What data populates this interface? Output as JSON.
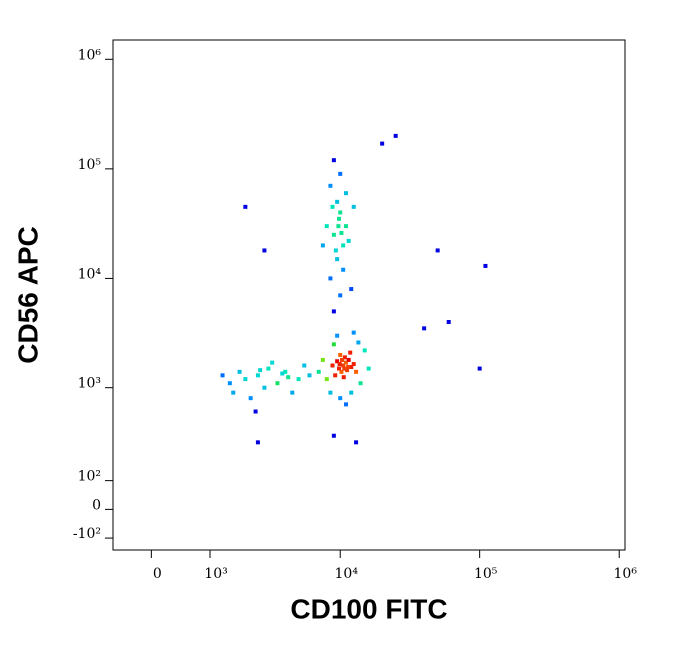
{
  "chart_data": {
    "type": "scatter",
    "x_label": "CD100 FITC",
    "y_label": "CD56 APC",
    "x_scale": "biexponential",
    "y_scale": "biexponential",
    "xlim": [
      -600,
      1100000
    ],
    "ylim": [
      -150,
      1500000
    ],
    "xticks": [
      0,
      {
        "value": 1000,
        "label": "10³"
      },
      {
        "value": 10000,
        "label": "10⁴"
      },
      {
        "value": 100000,
        "label": "10⁵"
      },
      {
        "value": 1000000,
        "label": "10⁶"
      }
    ],
    "yticks": [
      {
        "value": -100,
        "label": "-10²"
      },
      0,
      {
        "value": 100,
        "label": "10²"
      },
      {
        "value": 1000,
        "label": "10³"
      },
      {
        "value": 10000,
        "label": "10⁴"
      },
      {
        "value": 100000,
        "label": "10⁵"
      },
      {
        "value": 1000000,
        "label": "10⁶"
      }
    ],
    "color": "#0000e0",
    "x": [
      10500,
      11000,
      9800,
      11500,
      10200,
      12000,
      10800,
      9500,
      11200,
      10000,
      12500,
      9200,
      11800,
      10600,
      8800,
      13000,
      10300,
      11400,
      9900,
      10700,
      8000,
      14000,
      7500,
      15000,
      9000,
      12000,
      10000,
      13500,
      8500,
      16000,
      7000,
      11000,
      9500,
      12500,
      6000,
      5000,
      4000,
      3500,
      3000,
      2500,
      2000,
      1800,
      1500,
      1300,
      2800,
      4500,
      3200,
      2200,
      5500,
      4200,
      3800,
      2600,
      1600,
      2400,
      9000,
      10000,
      8500,
      9500,
      10500,
      9000,
      11000,
      8000,
      10000,
      9500,
      11000,
      8500,
      10000,
      9000,
      12000,
      7500,
      10500,
      9800,
      8800,
      11500,
      10200,
      9300,
      12500,
      9700,
      50000,
      110000,
      100000,
      60000,
      40000,
      2000,
      2800,
      20000,
      25000,
      9000,
      13000,
      2500
    ],
    "y": [
      1600,
      1700,
      1500,
      1800,
      1400,
      1550,
      1900,
      1750,
      1450,
      2000,
      1650,
      1300,
      2100,
      1250,
      1600,
      1400,
      1800,
      1550,
      1650,
      1500,
      1200,
      1100,
      1800,
      2200,
      2500,
      900,
      800,
      2600,
      900,
      1500,
      1400,
      700,
      3000,
      3200,
      1300,
      1200,
      1400,
      1100,
      1500,
      1300,
      1200,
      1400,
      1100,
      1300,
      1000,
      900,
      1700,
      800,
      1600,
      1250,
      1350,
      1450,
      900,
      600,
      5000,
      7000,
      10000,
      15000,
      20000,
      25000,
      30000,
      30000,
      40000,
      50000,
      60000,
      70000,
      90000,
      120000,
      8000,
      20000,
      12000,
      35000,
      45000,
      22000,
      26000,
      18000,
      45000,
      30000,
      18000,
      13000,
      1500,
      4000,
      3500,
      45000,
      18000,
      170000,
      200000,
      350,
      300,
      300
    ]
  }
}
